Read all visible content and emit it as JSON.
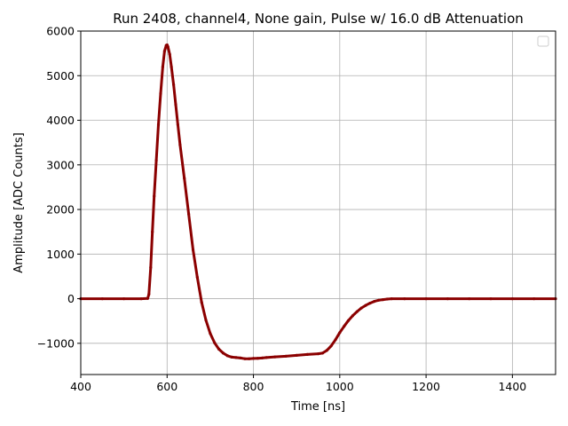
{
  "chart_data": {
    "type": "scatter",
    "title": "Run 2408, channel4, None gain, Pulse w/ 16.0 dB Attenuation",
    "xlabel": "Time [ns]",
    "ylabel": "Amplitude [ADC Counts]",
    "xlim": [
      400,
      1500
    ],
    "ylim": [
      -1700,
      6000
    ],
    "xticks": [
      400,
      600,
      800,
      1000,
      1200,
      1400
    ],
    "yticks": [
      -1000,
      0,
      1000,
      2000,
      3000,
      4000,
      5000,
      6000
    ],
    "grid": true,
    "legend": {
      "placement": "top-right",
      "entries": []
    },
    "marker_color": "#8b0000",
    "series": [
      {
        "x": [
          400,
          450,
          500,
          540,
          555,
          558,
          562,
          566,
          570,
          575,
          580,
          585,
          590,
          594,
          598,
          600,
          602,
          606,
          610,
          615,
          620,
          625,
          630,
          640,
          650,
          660,
          670,
          680,
          690,
          700,
          710,
          720,
          730,
          740,
          750,
          760,
          770,
          780,
          790,
          800,
          810,
          820,
          830,
          850,
          875,
          900,
          925,
          950,
          960,
          970,
          980,
          990,
          1000,
          1010,
          1020,
          1030,
          1040,
          1050,
          1060,
          1070,
          1080,
          1090,
          1100,
          1110,
          1120,
          1150,
          1200,
          1250,
          1300,
          1350,
          1400,
          1450,
          1500
        ],
        "y": [
          0,
          0,
          0,
          0,
          5,
          100,
          700,
          1500,
          2300,
          3100,
          3900,
          4600,
          5200,
          5550,
          5680,
          5690,
          5650,
          5480,
          5200,
          4800,
          4350,
          3900,
          3450,
          2700,
          1900,
          1100,
          480,
          -80,
          -480,
          -780,
          -990,
          -1130,
          -1220,
          -1280,
          -1310,
          -1320,
          -1330,
          -1345,
          -1345,
          -1340,
          -1335,
          -1330,
          -1320,
          -1305,
          -1290,
          -1270,
          -1250,
          -1235,
          -1220,
          -1160,
          -1060,
          -920,
          -760,
          -620,
          -490,
          -380,
          -290,
          -210,
          -150,
          -100,
          -60,
          -35,
          -20,
          -8,
          0,
          0,
          0,
          0,
          0,
          0,
          0,
          0,
          0
        ]
      }
    ]
  }
}
